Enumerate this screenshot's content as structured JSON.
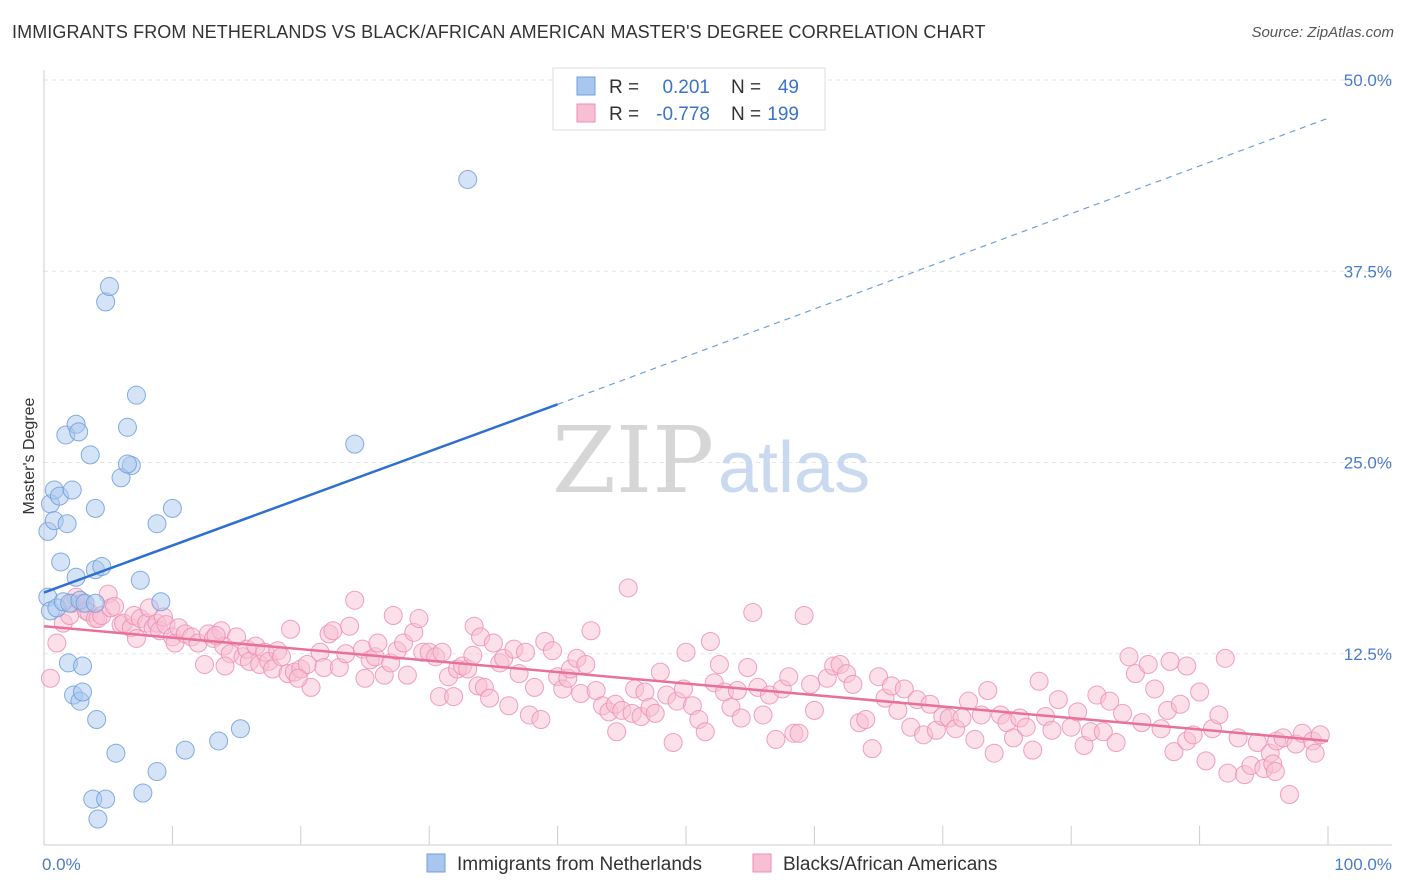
{
  "header": {
    "title": "IMMIGRANTS FROM NETHERLANDS VS BLACK/AFRICAN AMERICAN MASTER'S DEGREE CORRELATION CHART",
    "source": "Source: ZipAtlas.com"
  },
  "watermark": {
    "zip": "ZIP",
    "atlas": "atlas"
  },
  "legend": {
    "rows": [
      {
        "r_label": "R =",
        "r_value": "0.201",
        "n_label": "N =",
        "n_value": "49"
      },
      {
        "r_label": "R =",
        "r_value": "-0.778",
        "n_label": "N =",
        "n_value": "199"
      }
    ]
  },
  "chart_data": {
    "type": "scatter",
    "title": "IMMIGRANTS FROM NETHERLANDS VS BLACK/AFRICAN AMERICAN MASTER'S DEGREE CORRELATION CHART",
    "xlabel": "",
    "ylabel": "Master's Degree",
    "xlim": [
      0,
      100
    ],
    "ylim": [
      0,
      50
    ],
    "x_tick_labels": [
      "0.0%",
      "100.0%"
    ],
    "y_ticks": [
      12.5,
      25.0,
      37.5,
      50.0
    ],
    "y_tick_labels": [
      "12.5%",
      "25.0%",
      "37.5%",
      "50.0%"
    ],
    "grid": true,
    "legend_position": "top-center",
    "series": [
      {
        "name": "Immigrants from Netherlands",
        "color": "#6f9fdb",
        "fill": "#a9c7ee",
        "R": 0.201,
        "N": 49,
        "trend": {
          "x0": 0,
          "y0": 16.5,
          "x1": 40,
          "y1": 28.8,
          "dash_to_x": 100,
          "dash_to_y": 47.5
        },
        "points": [
          [
            0.3,
            20.5
          ],
          [
            0.3,
            16.2
          ],
          [
            0.5,
            15.3
          ],
          [
            0.5,
            22.3
          ],
          [
            0.8,
            21.2
          ],
          [
            0.8,
            23.2
          ],
          [
            1.0,
            15.5
          ],
          [
            1.2,
            22.8
          ],
          [
            1.3,
            18.5
          ],
          [
            1.5,
            15.9
          ],
          [
            1.7,
            26.8
          ],
          [
            1.8,
            21.0
          ],
          [
            1.9,
            11.9
          ],
          [
            2.0,
            15.8
          ],
          [
            2.2,
            23.2
          ],
          [
            2.3,
            9.8
          ],
          [
            2.5,
            27.5
          ],
          [
            2.5,
            17.5
          ],
          [
            2.7,
            27.0
          ],
          [
            2.8,
            9.4
          ],
          [
            2.8,
            16.0
          ],
          [
            3.0,
            11.7
          ],
          [
            3.0,
            10.0
          ],
          [
            3.2,
            15.8
          ],
          [
            3.6,
            25.5
          ],
          [
            3.8,
            3.0
          ],
          [
            4.0,
            22.0
          ],
          [
            4.2,
            1.7
          ],
          [
            4.0,
            18.0
          ],
          [
            4.0,
            15.8
          ],
          [
            4.1,
            8.2
          ],
          [
            4.5,
            18.2
          ],
          [
            4.8,
            35.5
          ],
          [
            4.8,
            3.0
          ],
          [
            5.1,
            36.5
          ],
          [
            6.8,
            24.8
          ],
          [
            6.0,
            24.0
          ],
          [
            5.6,
            6.0
          ],
          [
            6.5,
            27.3
          ],
          [
            7.2,
            29.4
          ],
          [
            6.5,
            24.9
          ],
          [
            7.5,
            17.3
          ],
          [
            7.7,
            3.4
          ],
          [
            8.8,
            4.8
          ],
          [
            8.8,
            21.0
          ],
          [
            9.1,
            15.9
          ],
          [
            10.0,
            22.0
          ],
          [
            11.0,
            6.2
          ],
          [
            13.6,
            6.8
          ],
          [
            15.3,
            7.6
          ],
          [
            24.2,
            26.2
          ],
          [
            33.0,
            43.5
          ]
        ]
      },
      {
        "name": "Blacks/African Americans",
        "color": "#ee8fb0",
        "fill": "#f7bfd3",
        "R": -0.778,
        "N": 199,
        "trend": {
          "x0": 0,
          "y0": 14.3,
          "x1": 100,
          "y1": 6.8
        },
        "points": [
          [
            0.5,
            10.9
          ],
          [
            1.0,
            13.2
          ],
          [
            1.5,
            14.5
          ],
          [
            2.0,
            15.0
          ],
          [
            2.2,
            15.8
          ],
          [
            2.5,
            16.2
          ],
          [
            3.0,
            15.8
          ],
          [
            3.3,
            15.3
          ],
          [
            3.5,
            15.2
          ],
          [
            4.0,
            14.8
          ],
          [
            4.2,
            14.8
          ],
          [
            4.5,
            15.0
          ],
          [
            5.0,
            16.4
          ],
          [
            5.2,
            15.5
          ],
          [
            5.5,
            15.6
          ],
          [
            6.0,
            14.4
          ],
          [
            6.2,
            14.5
          ],
          [
            6.8,
            14.2
          ],
          [
            7.0,
            15.0
          ],
          [
            7.2,
            13.5
          ],
          [
            7.5,
            14.8
          ],
          [
            8.0,
            14.5
          ],
          [
            8.2,
            15.5
          ],
          [
            8.5,
            14.2
          ],
          [
            8.8,
            14.5
          ],
          [
            9.0,
            14.0
          ],
          [
            9.3,
            14.9
          ],
          [
            9.5,
            14.4
          ],
          [
            10.0,
            13.6
          ],
          [
            10.2,
            13.2
          ],
          [
            10.5,
            14.2
          ],
          [
            11.0,
            13.8
          ],
          [
            11.5,
            13.6
          ],
          [
            12.0,
            13.2
          ],
          [
            12.5,
            11.8
          ],
          [
            12.8,
            13.8
          ],
          [
            13.2,
            13.5
          ],
          [
            13.8,
            14.0
          ],
          [
            14.0,
            13.0
          ],
          [
            14.5,
            12.5
          ],
          [
            15.0,
            13.6
          ],
          [
            15.5,
            12.3
          ],
          [
            15.8,
            12.8
          ],
          [
            16.0,
            12.0
          ],
          [
            16.5,
            13.0
          ],
          [
            16.8,
            11.8
          ],
          [
            17.2,
            12.6
          ],
          [
            17.5,
            12.0
          ],
          [
            17.8,
            11.5
          ],
          [
            18.2,
            12.7
          ],
          [
            18.5,
            12.3
          ],
          [
            19.0,
            11.2
          ],
          [
            19.2,
            14.1
          ],
          [
            19.5,
            11.3
          ],
          [
            20.0,
            11.5
          ],
          [
            20.5,
            11.8
          ],
          [
            20.8,
            10.3
          ],
          [
            21.5,
            12.6
          ],
          [
            21.8,
            11.6
          ],
          [
            22.2,
            13.8
          ],
          [
            22.5,
            14.0
          ],
          [
            23.0,
            11.6
          ],
          [
            23.5,
            12.5
          ],
          [
            23.8,
            14.3
          ],
          [
            24.2,
            16.0
          ],
          [
            24.8,
            12.8
          ],
          [
            25.0,
            10.9
          ],
          [
            25.4,
            12.1
          ],
          [
            25.8,
            12.3
          ],
          [
            26.0,
            13.2
          ],
          [
            26.5,
            11.1
          ],
          [
            27.0,
            11.9
          ],
          [
            27.2,
            15.0
          ],
          [
            27.5,
            12.7
          ],
          [
            28.0,
            13.2
          ],
          [
            28.3,
            11.1
          ],
          [
            28.8,
            13.9
          ],
          [
            29.2,
            14.8
          ],
          [
            29.5,
            12.6
          ],
          [
            30.0,
            12.6
          ],
          [
            30.5,
            12.3
          ],
          [
            30.8,
            9.7
          ],
          [
            31.0,
            12.6
          ],
          [
            31.5,
            11.0
          ],
          [
            31.9,
            9.7
          ],
          [
            32.2,
            11.5
          ],
          [
            32.6,
            11.7
          ],
          [
            33.0,
            11.5
          ],
          [
            33.4,
            12.4
          ],
          [
            33.5,
            14.3
          ],
          [
            33.8,
            10.4
          ],
          [
            34.0,
            13.6
          ],
          [
            34.3,
            10.3
          ],
          [
            34.7,
            9.6
          ],
          [
            35.0,
            13.2
          ],
          [
            35.5,
            11.9
          ],
          [
            35.8,
            12.2
          ],
          [
            36.2,
            9.1
          ],
          [
            36.6,
            12.8
          ],
          [
            37.0,
            11.2
          ],
          [
            37.5,
            12.6
          ],
          [
            37.8,
            8.5
          ],
          [
            38.2,
            10.3
          ],
          [
            38.7,
            8.2
          ],
          [
            39.0,
            13.3
          ],
          [
            39.6,
            12.7
          ],
          [
            40.0,
            11.0
          ],
          [
            40.4,
            10.2
          ],
          [
            40.8,
            10.9
          ],
          [
            41.0,
            11.5
          ],
          [
            41.5,
            12.2
          ],
          [
            41.8,
            9.9
          ],
          [
            42.2,
            11.8
          ],
          [
            42.6,
            14.0
          ],
          [
            43.0,
            10.1
          ],
          [
            43.5,
            9.1
          ],
          [
            44.0,
            8.7
          ],
          [
            44.5,
            9.2
          ],
          [
            45.0,
            8.8
          ],
          [
            45.5,
            16.8
          ],
          [
            45.8,
            8.6
          ],
          [
            46.0,
            10.2
          ],
          [
            46.5,
            8.4
          ],
          [
            46.8,
            10.0
          ],
          [
            47.2,
            9.0
          ],
          [
            47.6,
            8.6
          ],
          [
            48.0,
            11.3
          ],
          [
            48.5,
            9.8
          ],
          [
            49.0,
            6.7
          ],
          [
            49.3,
            9.4
          ],
          [
            49.8,
            10.2
          ],
          [
            50.0,
            12.6
          ],
          [
            50.5,
            9.1
          ],
          [
            51.0,
            8.2
          ],
          [
            51.5,
            7.4
          ],
          [
            51.9,
            13.3
          ],
          [
            52.2,
            10.6
          ],
          [
            52.6,
            11.8
          ],
          [
            53.0,
            10.0
          ],
          [
            53.5,
            9.0
          ],
          [
            54.0,
            10.1
          ],
          [
            54.3,
            8.3
          ],
          [
            54.8,
            11.6
          ],
          [
            55.2,
            15.2
          ],
          [
            55.6,
            10.3
          ],
          [
            56.0,
            8.5
          ],
          [
            56.5,
            9.8
          ],
          [
            57.0,
            6.9
          ],
          [
            57.5,
            10.2
          ],
          [
            58.0,
            11.0
          ],
          [
            58.4,
            7.3
          ],
          [
            58.8,
            7.3
          ],
          [
            59.2,
            15.0
          ],
          [
            59.7,
            10.5
          ],
          [
            60.0,
            8.8
          ],
          [
            61.0,
            10.9
          ],
          [
            61.5,
            11.7
          ],
          [
            62.0,
            11.8
          ],
          [
            62.5,
            11.2
          ],
          [
            63.0,
            10.5
          ],
          [
            63.5,
            8.0
          ],
          [
            64.0,
            8.2
          ],
          [
            64.5,
            6.3
          ],
          [
            65.0,
            11.0
          ],
          [
            65.5,
            9.6
          ],
          [
            66.0,
            10.4
          ],
          [
            66.5,
            8.8
          ],
          [
            67.0,
            10.2
          ],
          [
            67.5,
            7.7
          ],
          [
            68.0,
            9.5
          ],
          [
            68.5,
            7.2
          ],
          [
            69.0,
            9.2
          ],
          [
            69.5,
            7.5
          ],
          [
            70.0,
            8.4
          ],
          [
            70.5,
            8.3
          ],
          [
            71.0,
            7.6
          ],
          [
            71.5,
            8.3
          ],
          [
            72.0,
            9.4
          ],
          [
            72.5,
            6.9
          ],
          [
            73.0,
            8.5
          ],
          [
            73.5,
            10.1
          ],
          [
            74.0,
            6.0
          ],
          [
            74.5,
            8.5
          ],
          [
            75.0,
            8.0
          ],
          [
            75.5,
            7.0
          ],
          [
            76.0,
            8.3
          ],
          [
            76.5,
            7.7
          ],
          [
            77.0,
            6.2
          ],
          [
            77.5,
            10.7
          ],
          [
            78.0,
            8.4
          ],
          [
            78.5,
            7.5
          ],
          [
            79.0,
            9.5
          ],
          [
            80.0,
            7.7
          ],
          [
            80.5,
            8.7
          ],
          [
            81.0,
            6.5
          ],
          [
            81.5,
            7.4
          ],
          [
            82.0,
            9.8
          ],
          [
            82.5,
            7.4
          ],
          [
            83.0,
            9.4
          ],
          [
            83.5,
            6.7
          ],
          [
            84.0,
            8.6
          ],
          [
            84.5,
            12.3
          ],
          [
            85.0,
            11.2
          ],
          [
            85.5,
            8.0
          ],
          [
            86.0,
            11.8
          ],
          [
            86.5,
            10.2
          ],
          [
            87.0,
            7.6
          ],
          [
            87.5,
            8.8
          ],
          [
            88.0,
            6.1
          ],
          [
            88.5,
            9.2
          ],
          [
            89.0,
            6.8
          ],
          [
            89.5,
            7.2
          ],
          [
            90.0,
            10.0
          ],
          [
            90.5,
            5.5
          ],
          [
            91.0,
            7.6
          ],
          [
            91.5,
            8.5
          ],
          [
            92.0,
            12.2
          ],
          [
            92.2,
            4.7
          ],
          [
            93.0,
            7.0
          ],
          [
            93.5,
            4.6
          ],
          [
            94.0,
            5.2
          ],
          [
            94.5,
            6.7
          ],
          [
            95.0,
            5.0
          ],
          [
            95.5,
            6.0
          ],
          [
            96.0,
            6.8
          ],
          [
            96.5,
            7.0
          ],
          [
            97.0,
            3.3
          ],
          [
            97.5,
            6.6
          ],
          [
            98.0,
            7.3
          ],
          [
            98.8,
            6.8
          ],
          [
            99.4,
            7.2
          ],
          [
            99.0,
            6.0
          ],
          [
            14.1,
            11.7
          ],
          [
            19.8,
            10.9
          ],
          [
            44.6,
            7.4
          ],
          [
            89.0,
            11.7
          ],
          [
            13.4,
            13.7
          ],
          [
            87.7,
            12.0
          ],
          [
            95.7,
            5.3
          ],
          [
            95.9,
            4.8
          ]
        ]
      }
    ]
  }
}
